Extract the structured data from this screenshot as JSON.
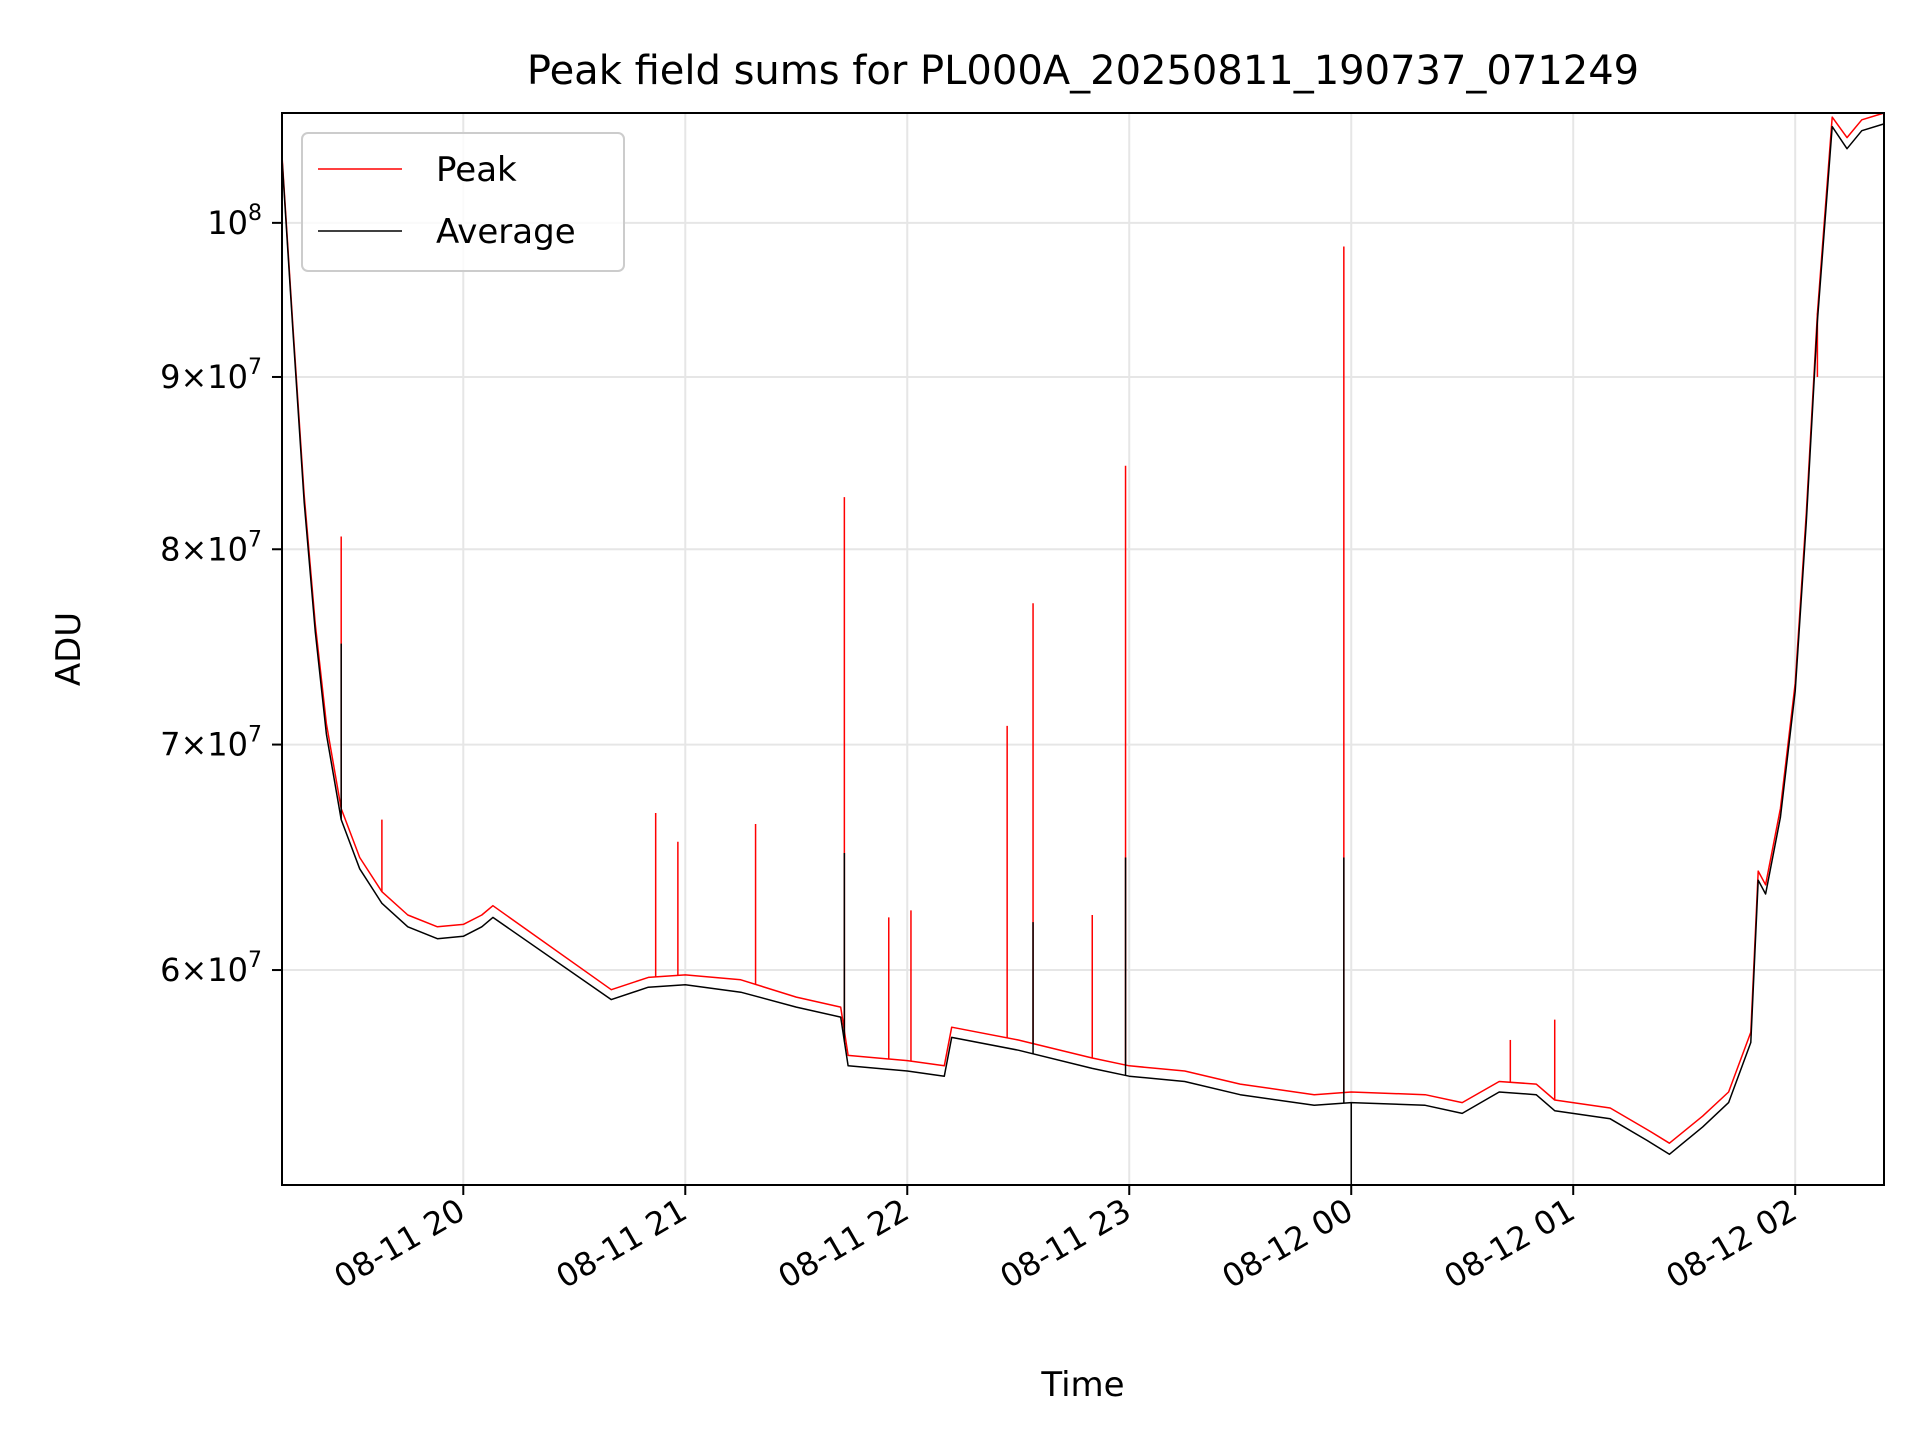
{
  "chart_data": {
    "type": "line",
    "title": "Peak field sums for PL000A_20250811_190737_071249",
    "xlabel": "Time",
    "ylabel": "ADU",
    "yscale": "log",
    "grid": true,
    "legend_position": "upper-left",
    "xlim": [
      "2025-08-11 19:11",
      "2025-08-12 02:24"
    ],
    "ylim": [
      51800000,
      107800000
    ],
    "x_ticks": [
      {
        "value": "2025-08-11 20:00",
        "label": "08-11 20"
      },
      {
        "value": "2025-08-11 21:00",
        "label": "08-11 21"
      },
      {
        "value": "2025-08-11 22:00",
        "label": "08-11 22"
      },
      {
        "value": "2025-08-11 23:00",
        "label": "08-11 23"
      },
      {
        "value": "2025-08-12 00:00",
        "label": "08-12 00"
      },
      {
        "value": "2025-08-12 01:00",
        "label": "08-12 01"
      },
      {
        "value": "2025-08-12 02:00",
        "label": "08-12 02"
      }
    ],
    "y_ticks": [
      {
        "value": 60000000,
        "mantissa": "6",
        "base": "10",
        "exp": "7"
      },
      {
        "value": 70000000,
        "mantissa": "7",
        "base": "10",
        "exp": "7"
      },
      {
        "value": 80000000,
        "mantissa": "8",
        "base": "10",
        "exp": "7"
      },
      {
        "value": 90000000,
        "mantissa": "9",
        "base": "10",
        "exp": "7"
      },
      {
        "value": 100000000,
        "mantissa": "",
        "base": "10",
        "exp": "8"
      }
    ],
    "series": [
      {
        "name": "Peak",
        "color": "#ff0000",
        "points": [
          [
            "2025-08-11 19:11",
            104700000
          ],
          [
            "2025-08-11 19:14",
            93000000
          ],
          [
            "2025-08-11 19:17",
            83000000
          ],
          [
            "2025-08-11 19:20",
            76000000
          ],
          [
            "2025-08-11 19:23",
            71000000
          ],
          [
            "2025-08-11 19:27",
            67000000
          ],
          [
            "2025-08-11 19:32",
            64800000
          ],
          [
            "2025-08-11 19:38",
            63300000
          ],
          [
            "2025-08-11 19:45",
            62300000
          ],
          [
            "2025-08-11 19:53",
            61800000
          ],
          [
            "2025-08-11 20:00",
            61900000
          ],
          [
            "2025-08-11 20:05",
            62300000
          ],
          [
            "2025-08-11 20:08",
            62700000
          ],
          [
            "2025-08-11 20:40",
            59200000
          ],
          [
            "2025-08-11 20:50",
            59700000
          ],
          [
            "2025-08-11 21:00",
            59800000
          ],
          [
            "2025-08-11 21:15",
            59600000
          ],
          [
            "2025-08-11 21:30",
            58900000
          ],
          [
            "2025-08-11 21:42",
            58500000
          ],
          [
            "2025-08-11 21:44",
            56600000
          ],
          [
            "2025-08-11 22:00",
            56400000
          ],
          [
            "2025-08-11 22:10",
            56200000
          ],
          [
            "2025-08-11 22:12",
            57700000
          ],
          [
            "2025-08-11 22:30",
            57200000
          ],
          [
            "2025-08-11 22:50",
            56500000
          ],
          [
            "2025-08-11 23:00",
            56200000
          ],
          [
            "2025-08-11 23:15",
            56000000
          ],
          [
            "2025-08-11 23:30",
            55500000
          ],
          [
            "2025-08-11 23:50",
            55100000
          ],
          [
            "2025-08-12 00:00",
            55200000
          ],
          [
            "2025-08-12 00:20",
            55100000
          ],
          [
            "2025-08-12 00:30",
            54800000
          ],
          [
            "2025-08-12 00:40",
            55600000
          ],
          [
            "2025-08-12 00:50",
            55500000
          ],
          [
            "2025-08-12 00:55",
            54900000
          ],
          [
            "2025-08-12 01:10",
            54600000
          ],
          [
            "2025-08-12 01:20",
            53800000
          ],
          [
            "2025-08-12 01:26",
            53300000
          ],
          [
            "2025-08-12 01:35",
            54300000
          ],
          [
            "2025-08-12 01:42",
            55200000
          ],
          [
            "2025-08-12 01:48",
            57500000
          ],
          [
            "2025-08-12 01:50",
            64200000
          ],
          [
            "2025-08-12 01:52",
            63600000
          ],
          [
            "2025-08-12 01:56",
            67000000
          ],
          [
            "2025-08-12 02:00",
            73000000
          ],
          [
            "2025-08-12 02:03",
            82000000
          ],
          [
            "2025-08-12 02:06",
            94000000
          ],
          [
            "2025-08-12 02:10",
            107500000
          ],
          [
            "2025-08-12 02:14",
            106000000
          ],
          [
            "2025-08-12 02:18",
            107300000
          ],
          [
            "2025-08-12 02:24",
            107800000
          ]
        ],
        "spikes": [
          [
            "2025-08-11 19:27",
            80700000
          ],
          [
            "2025-08-11 19:38",
            66500000
          ],
          [
            "2025-08-11 20:52",
            66800000
          ],
          [
            "2025-08-11 20:58",
            65500000
          ],
          [
            "2025-08-11 21:19",
            66300000
          ],
          [
            "2025-08-11 21:43",
            82900000
          ],
          [
            "2025-08-11 21:55",
            62200000
          ],
          [
            "2025-08-11 22:01",
            62500000
          ],
          [
            "2025-08-11 22:27",
            70900000
          ],
          [
            "2025-08-11 22:34",
            77100000
          ],
          [
            "2025-08-11 22:50",
            62300000
          ],
          [
            "2025-08-11 22:59",
            84700000
          ],
          [
            "2025-08-11 23:58",
            98400000
          ],
          [
            "2025-08-12 00:43",
            57200000
          ],
          [
            "2025-08-12 00:55",
            58000000
          ],
          [
            "2025-08-12 02:06",
            90000000
          ]
        ]
      },
      {
        "name": "Average",
        "color": "#000000",
        "points": [
          [
            "2025-08-11 19:11",
            104500000
          ],
          [
            "2025-08-11 19:14",
            92700000
          ],
          [
            "2025-08-11 19:17",
            82600000
          ],
          [
            "2025-08-11 19:20",
            75600000
          ],
          [
            "2025-08-11 19:23",
            70500000
          ],
          [
            "2025-08-11 19:27",
            66500000
          ],
          [
            "2025-08-11 19:32",
            64300000
          ],
          [
            "2025-08-11 19:38",
            62800000
          ],
          [
            "2025-08-11 19:45",
            61800000
          ],
          [
            "2025-08-11 19:53",
            61300000
          ],
          [
            "2025-08-11 20:00",
            61400000
          ],
          [
            "2025-08-11 20:05",
            61800000
          ],
          [
            "2025-08-11 20:08",
            62200000
          ],
          [
            "2025-08-11 20:40",
            58800000
          ],
          [
            "2025-08-11 20:50",
            59300000
          ],
          [
            "2025-08-11 21:00",
            59400000
          ],
          [
            "2025-08-11 21:15",
            59100000
          ],
          [
            "2025-08-11 21:30",
            58500000
          ],
          [
            "2025-08-11 21:42",
            58100000
          ],
          [
            "2025-08-11 21:44",
            56200000
          ],
          [
            "2025-08-11 22:00",
            56000000
          ],
          [
            "2025-08-11 22:10",
            55800000
          ],
          [
            "2025-08-11 22:12",
            57300000
          ],
          [
            "2025-08-11 22:30",
            56800000
          ],
          [
            "2025-08-11 22:50",
            56100000
          ],
          [
            "2025-08-11 23:00",
            55800000
          ],
          [
            "2025-08-11 23:15",
            55600000
          ],
          [
            "2025-08-11 23:30",
            55100000
          ],
          [
            "2025-08-11 23:50",
            54700000
          ],
          [
            "2025-08-12 00:00",
            54800000
          ],
          [
            "2025-08-12 00:20",
            54700000
          ],
          [
            "2025-08-12 00:30",
            54400000
          ],
          [
            "2025-08-12 00:40",
            55200000
          ],
          [
            "2025-08-12 00:50",
            55100000
          ],
          [
            "2025-08-12 00:55",
            54500000
          ],
          [
            "2025-08-12 01:10",
            54200000
          ],
          [
            "2025-08-12 01:20",
            53400000
          ],
          [
            "2025-08-12 01:26",
            52900000
          ],
          [
            "2025-08-12 01:35",
            53900000
          ],
          [
            "2025-08-12 01:42",
            54800000
          ],
          [
            "2025-08-12 01:48",
            57100000
          ],
          [
            "2025-08-12 01:50",
            63800000
          ],
          [
            "2025-08-12 01:52",
            63200000
          ],
          [
            "2025-08-12 01:56",
            66600000
          ],
          [
            "2025-08-12 02:00",
            72600000
          ],
          [
            "2025-08-12 02:03",
            81500000
          ],
          [
            "2025-08-12 02:06",
            93500000
          ],
          [
            "2025-08-12 02:10",
            106800000
          ],
          [
            "2025-08-12 02:14",
            105200000
          ],
          [
            "2025-08-12 02:18",
            106500000
          ],
          [
            "2025-08-12 02:24",
            107000000
          ]
        ],
        "spikes": [
          [
            "2025-08-11 19:27",
            75000000
          ],
          [
            "2025-08-11 21:43",
            65000000
          ],
          [
            "2025-08-11 22:34",
            62000000
          ],
          [
            "2025-08-11 22:59",
            64800000
          ],
          [
            "2025-08-11 23:58",
            64800000
          ],
          [
            "2025-08-12 00:00",
            51800000
          ]
        ]
      }
    ]
  }
}
